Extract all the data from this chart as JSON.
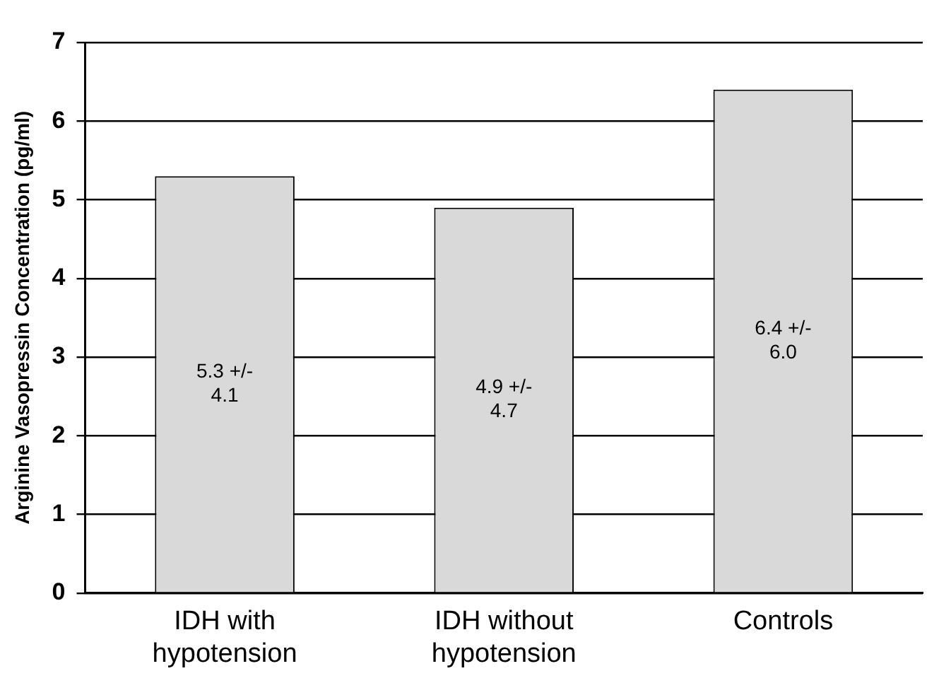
{
  "chart_data": {
    "type": "bar",
    "ylabel": "Arginine Vasopressin Concentration (pg/ml)",
    "categories": [
      "IDH with hypotension",
      "IDH without hypotension",
      "Controls"
    ],
    "values": [
      5.3,
      4.9,
      6.4
    ],
    "value_labels": [
      "5.3 +/- 4.1",
      "4.9 +/- 4.7",
      "6.4 +/- 6.0"
    ],
    "color": "#d9d9d9",
    "ylim": [
      0,
      7
    ],
    "yticks": [
      0,
      1,
      2,
      3,
      4,
      5,
      6,
      7
    ],
    "grid": "y",
    "legend": false
  }
}
